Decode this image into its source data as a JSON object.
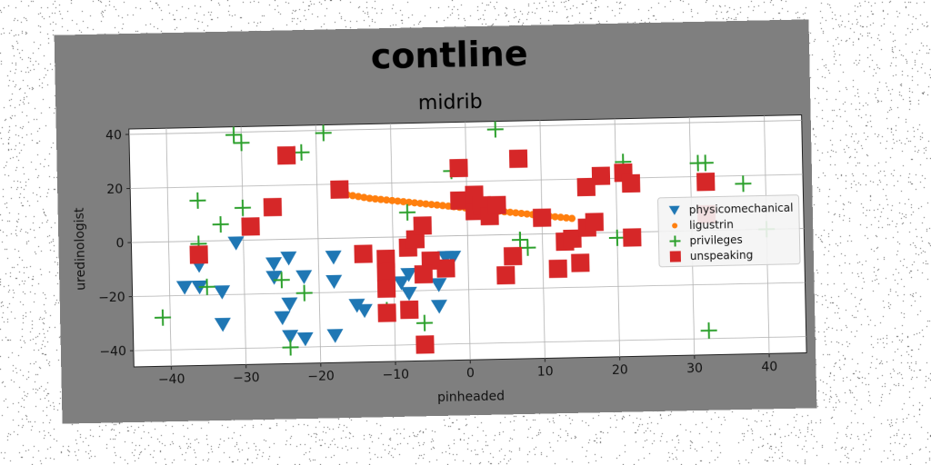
{
  "chart_data": {
    "type": "scatter",
    "suptitle": "contline",
    "title": "midrib",
    "xlabel": "pinheaded",
    "ylabel": "uredinologist",
    "xlim": [
      -45,
      45
    ],
    "ylim": [
      -46,
      42
    ],
    "xticks": [
      -40,
      -30,
      -20,
      -10,
      0,
      10,
      20,
      30,
      40
    ],
    "yticks": [
      -40,
      -20,
      0,
      20,
      40
    ],
    "grid": true,
    "legend_position": "center-right",
    "series": [
      {
        "name": "physicomechanical",
        "marker": "triangle-down",
        "color": "#1f77b4",
        "points": [
          [
            -31,
            -1
          ],
          [
            -36,
            -9
          ],
          [
            -38,
            -17
          ],
          [
            -36,
            -17
          ],
          [
            -33,
            -19
          ],
          [
            -33,
            -31
          ],
          [
            -26,
            -9
          ],
          [
            -24,
            -7
          ],
          [
            -26,
            -14
          ],
          [
            -22,
            -14
          ],
          [
            -24,
            -24
          ],
          [
            -25,
            -29
          ],
          [
            -24,
            -36
          ],
          [
            -22,
            -37
          ],
          [
            -18,
            -7
          ],
          [
            -18,
            -16
          ],
          [
            -15,
            -25
          ],
          [
            -14,
            -27
          ],
          [
            -9,
            -17
          ],
          [
            -8,
            -21
          ],
          [
            -8,
            -14
          ],
          [
            -4,
            -18
          ],
          [
            -4,
            -26
          ],
          [
            -3,
            -8
          ],
          [
            -2,
            -8
          ],
          [
            -18,
            -36
          ]
        ]
      },
      {
        "name": "ligustrin",
        "marker": "circle",
        "color": "#ff7f0e",
        "points": [
          [
            -16,
            16
          ],
          [
            -13,
            14.5
          ],
          [
            -10,
            13.5
          ],
          [
            -7,
            12.5
          ],
          [
            -4,
            11.5
          ],
          [
            -1,
            10.5
          ],
          [
            2,
            9.5
          ],
          [
            5,
            8.5
          ],
          [
            8,
            7.5
          ],
          [
            11,
            6.5
          ],
          [
            14,
            5.5
          ]
        ]
      },
      {
        "name": "privileges",
        "marker": "plus",
        "color": "#2ca02c",
        "points": [
          [
            -31,
            39
          ],
          [
            -30,
            36
          ],
          [
            -22,
            32
          ],
          [
            -19,
            39
          ],
          [
            -36,
            15
          ],
          [
            -33,
            6
          ],
          [
            -30,
            12
          ],
          [
            -36,
            -1
          ],
          [
            -41,
            -28
          ],
          [
            -35,
            -17
          ],
          [
            -25,
            -15
          ],
          [
            -22,
            -20
          ],
          [
            -24,
            -40
          ],
          [
            -11,
            -27
          ],
          [
            -8,
            9
          ],
          [
            -6,
            -32
          ],
          [
            4,
            39
          ],
          [
            7,
            -2
          ],
          [
            8,
            -5
          ],
          [
            21,
            26
          ],
          [
            20,
            -2
          ],
          [
            31,
            25
          ],
          [
            32,
            25
          ],
          [
            37,
            17
          ],
          [
            32,
            -37
          ],
          [
            40,
            0
          ],
          [
            -2,
            24
          ]
        ]
      },
      {
        "name": "unspeaking",
        "marker": "square",
        "color": "#d62728",
        "points": [
          [
            -24,
            31
          ],
          [
            -17,
            18
          ],
          [
            -26,
            12
          ],
          [
            -29,
            5
          ],
          [
            -36,
            -5
          ],
          [
            -14,
            -6
          ],
          [
            -11,
            -8
          ],
          [
            -11,
            -13
          ],
          [
            -11,
            -19
          ],
          [
            -8,
            -4
          ],
          [
            -7,
            -1
          ],
          [
            -6,
            4
          ],
          [
            -5,
            -9
          ],
          [
            -6,
            -14
          ],
          [
            -3,
            -12
          ],
          [
            -8,
            -27
          ],
          [
            -6,
            -40
          ],
          [
            -1,
            25
          ],
          [
            -1,
            13
          ],
          [
            1,
            9
          ],
          [
            1,
            15
          ],
          [
            2,
            11
          ],
          [
            3,
            7
          ],
          [
            4,
            11
          ],
          [
            5,
            -15
          ],
          [
            6,
            -8
          ],
          [
            7,
            28
          ],
          [
            10,
            6
          ],
          [
            12,
            -13
          ],
          [
            13,
            -3
          ],
          [
            14,
            -2
          ],
          [
            16,
            2
          ],
          [
            15,
            -11
          ],
          [
            17,
            4
          ],
          [
            16,
            17
          ],
          [
            18,
            21
          ],
          [
            21,
            22
          ],
          [
            22,
            18
          ],
          [
            22,
            -2
          ],
          [
            32,
            18
          ],
          [
            32,
            6
          ],
          [
            -11,
            -28
          ]
        ]
      }
    ]
  }
}
